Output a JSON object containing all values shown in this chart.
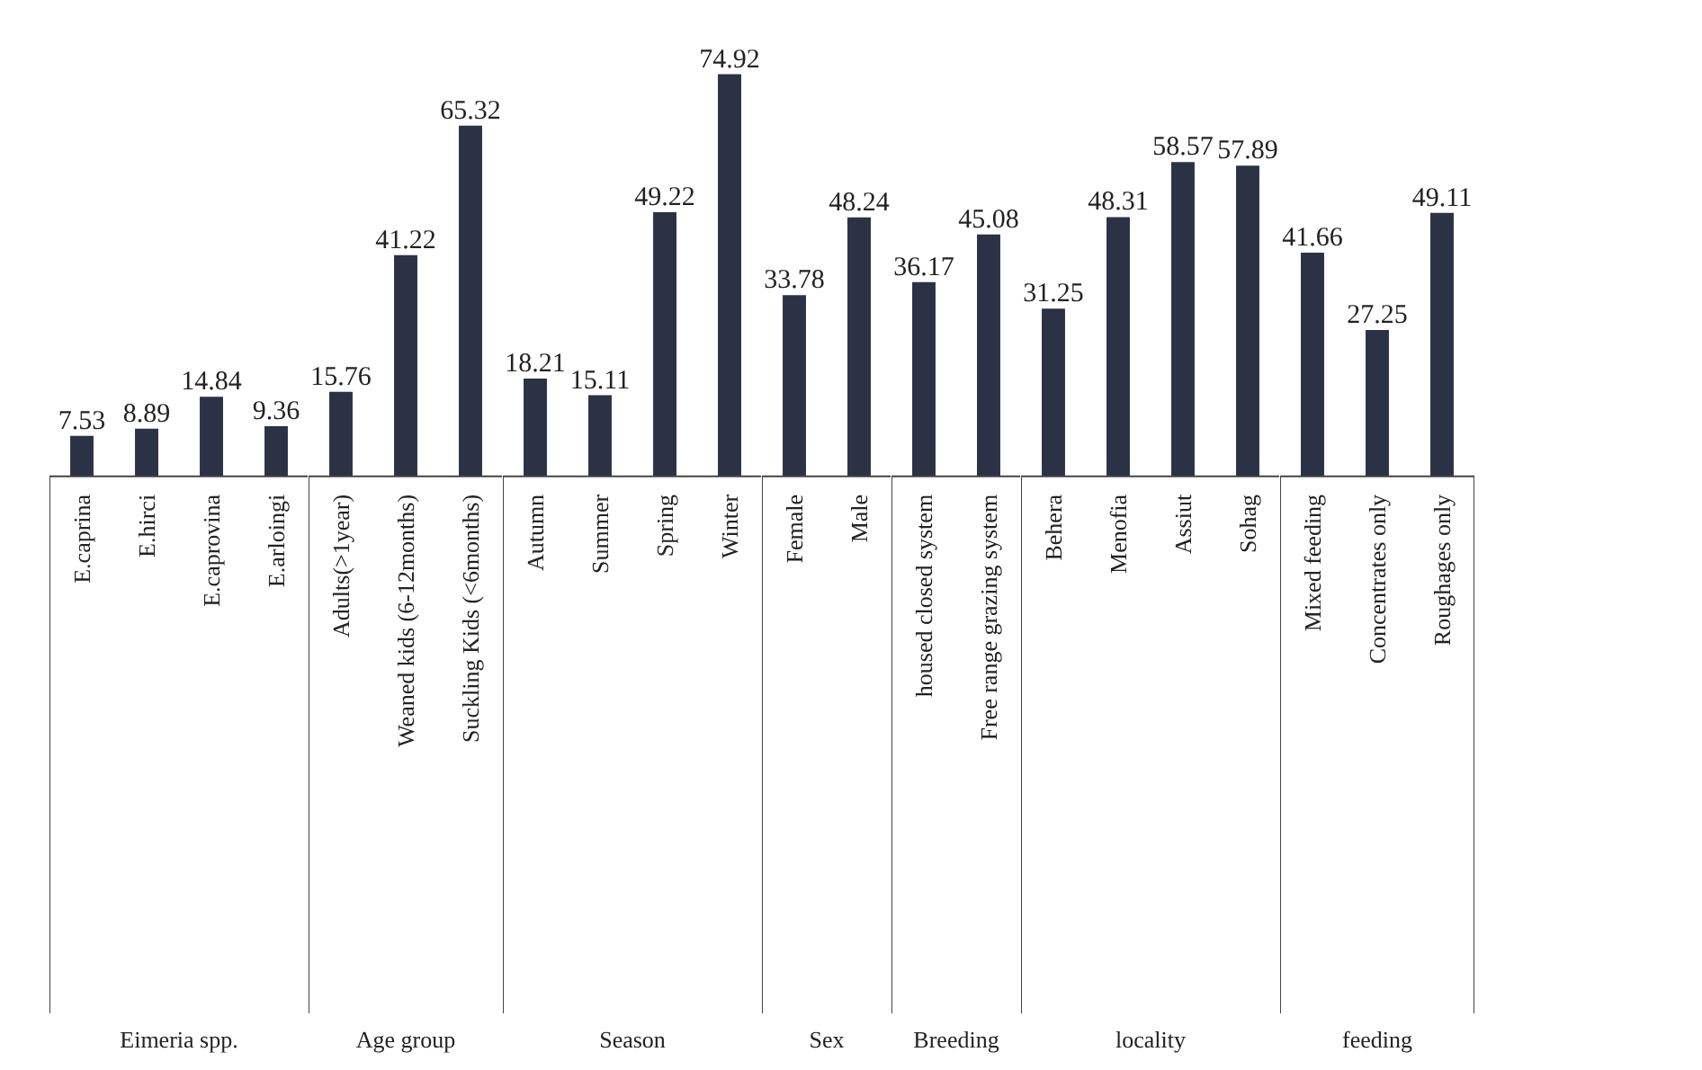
{
  "chart_data": [
    {
      "type": "bar",
      "title": "Eimeria spp.",
      "categories": [
        "E.caprina",
        "E.hirci",
        "E.caprovina",
        "E.arloingi"
      ],
      "values": [
        7.53,
        8.89,
        14.84,
        9.36
      ],
      "color": "#2b3245",
      "data_labels": true
    },
    {
      "type": "bar",
      "title": "Age group",
      "categories": [
        "Adults(>1year)",
        "Weaned kids (6-12months)",
        "Suckling Kids (<6months)"
      ],
      "values": [
        15.76,
        41.22,
        65.32
      ],
      "color": "#2b3245",
      "data_labels": true
    },
    {
      "type": "bar",
      "title": "Season",
      "categories": [
        "Autumn",
        "Summer",
        "Spring",
        "Winter"
      ],
      "values": [
        18.21,
        15.11,
        49.22,
        74.92
      ],
      "color": "#2b3245",
      "data_labels": true
    },
    {
      "type": "bar",
      "title": "Sex",
      "categories": [
        "Female",
        "Male"
      ],
      "values": [
        33.78,
        48.24
      ],
      "color": "#2b3245",
      "data_labels": true
    },
    {
      "type": "bar",
      "title": "Breeding",
      "categories": [
        "housed closed system",
        "Free range grazing system"
      ],
      "values": [
        36.17,
        45.08
      ],
      "color": "#2b3245",
      "data_labels": true
    },
    {
      "type": "bar",
      "title": "locality",
      "categories": [
        "Behera",
        "Menofia",
        "Assiut",
        "Sohag"
      ],
      "values": [
        31.25,
        48.31,
        58.57,
        57.89
      ],
      "color": "#2b3245",
      "data_labels": true
    },
    {
      "type": "bar",
      "title": "feeding",
      "categories": [
        "Mixed feeding",
        "Concentrates only",
        "Roughages only"
      ],
      "values": [
        41.66,
        27.25,
        49.11
      ],
      "color": "#2b3245",
      "data_labels": true
    }
  ]
}
